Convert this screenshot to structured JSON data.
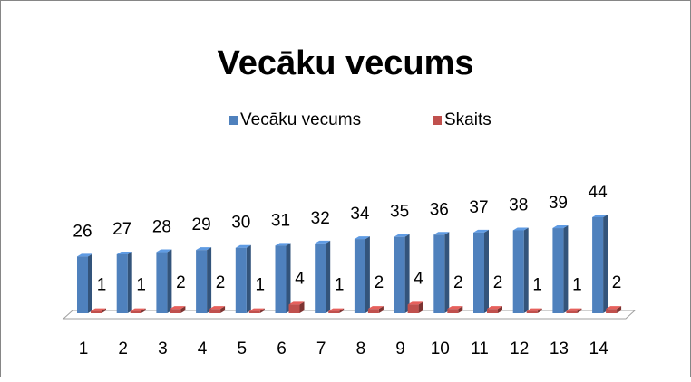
{
  "chart_data": {
    "type": "bar3d",
    "title": "Vecāku vecums",
    "categories": [
      "1",
      "2",
      "3",
      "4",
      "5",
      "6",
      "7",
      "8",
      "9",
      "10",
      "11",
      "12",
      "13",
      "14"
    ],
    "series": [
      {
        "name": "Vecāku vecums",
        "color": "#4f81bd",
        "values": [
          26,
          27,
          28,
          29,
          30,
          31,
          32,
          34,
          35,
          36,
          37,
          38,
          39,
          44
        ]
      },
      {
        "name": "Skaits",
        "color": "#c0504d",
        "values": [
          1,
          1,
          2,
          2,
          1,
          4,
          1,
          2,
          4,
          2,
          2,
          1,
          1,
          2
        ]
      }
    ],
    "legend": "top"
  }
}
